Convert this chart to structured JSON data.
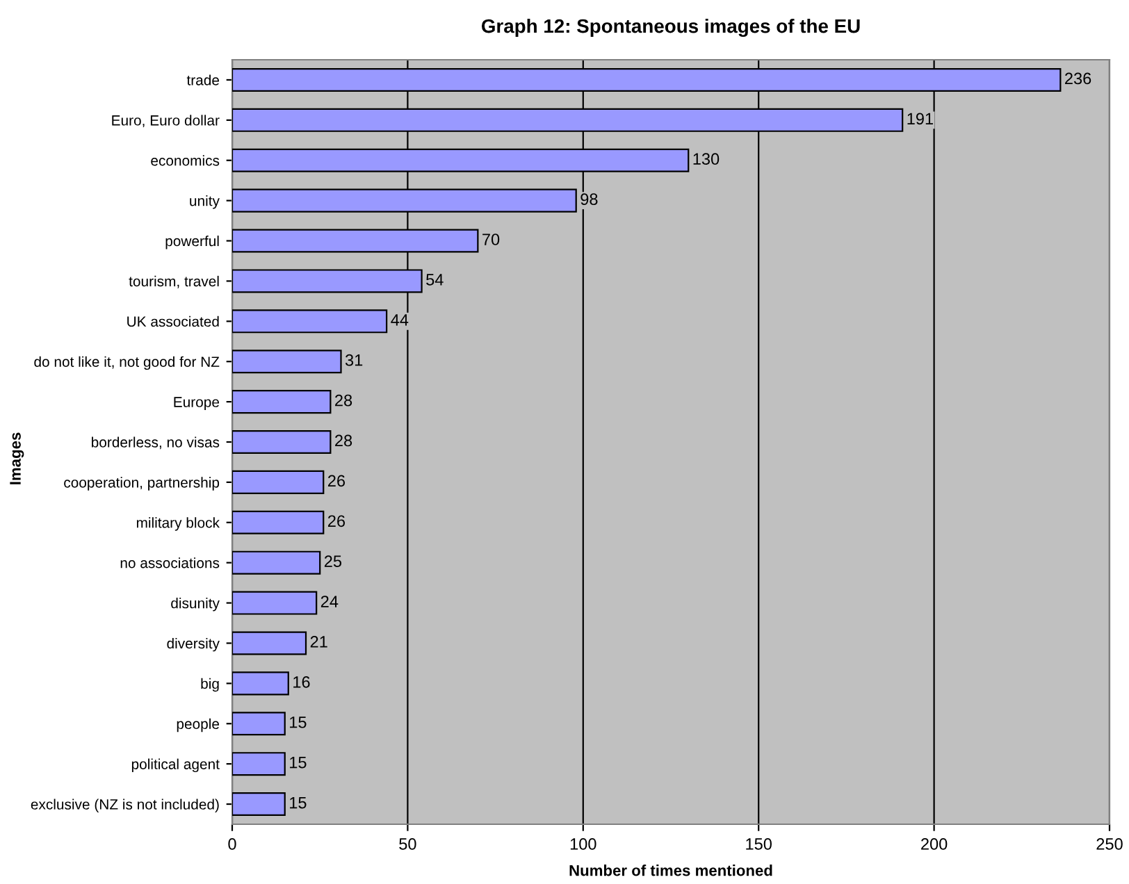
{
  "chart_data": {
    "type": "bar",
    "orientation": "horizontal",
    "title": "Graph 12: Spontaneous images of the EU",
    "xlabel": "Number of times mentioned",
    "ylabel": "Images",
    "categories": [
      "trade",
      "Euro, Euro dollar",
      "economics",
      "unity",
      "powerful",
      "tourism, travel",
      "UK associated",
      "do not like it, not good for NZ",
      "Europe",
      "borderless, no visas",
      "cooperation, partnership",
      "military block",
      "no associations",
      "disunity",
      "diversity",
      "big",
      "people",
      "political agent",
      "exclusive (NZ is not included)"
    ],
    "values": [
      236,
      191,
      130,
      98,
      70,
      54,
      44,
      31,
      28,
      28,
      26,
      26,
      25,
      24,
      21,
      16,
      15,
      15,
      15
    ],
    "color": "#9999ff",
    "xlim": [
      0,
      250
    ],
    "xticks": [
      0,
      50,
      100,
      150,
      200,
      250
    ],
    "grid": "x",
    "data_labels": true
  }
}
